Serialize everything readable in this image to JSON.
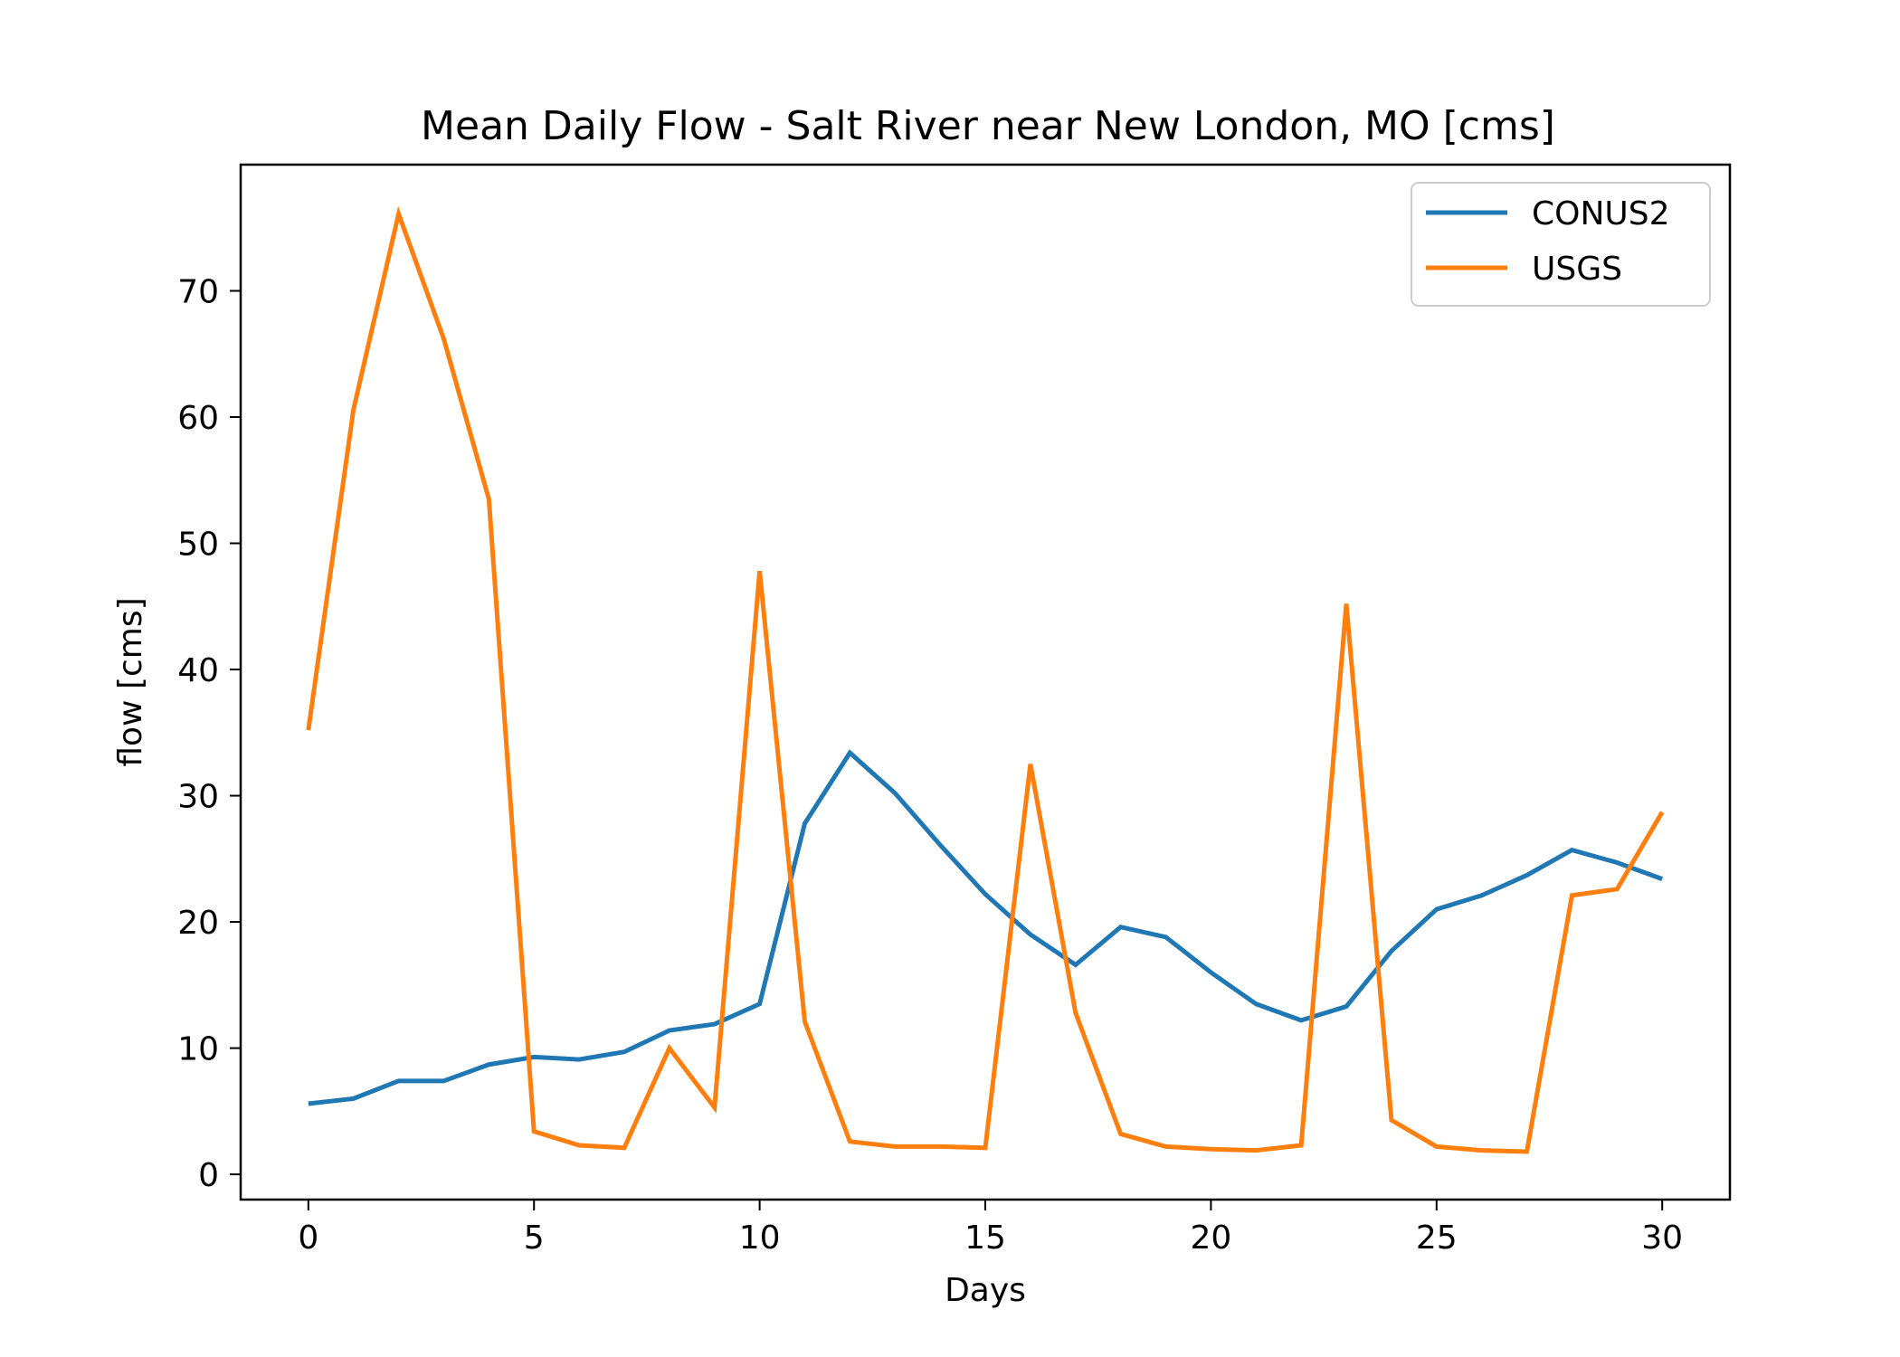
{
  "chart_data": {
    "type": "line",
    "title": "Mean Daily Flow - Salt River near New London, MO [cms]",
    "xlabel": "Days",
    "ylabel": "flow [cms]",
    "xlim": [
      -1.5,
      31.5
    ],
    "ylim": [
      -2,
      80
    ],
    "xticks": [
      0,
      5,
      10,
      15,
      20,
      25,
      30
    ],
    "xtick_labels": [
      "0",
      "5",
      "10",
      "15",
      "20",
      "25",
      "30"
    ],
    "yticks": [
      0,
      10,
      20,
      30,
      40,
      50,
      60,
      70
    ],
    "ytick_labels": [
      "0",
      "10",
      "20",
      "30",
      "40",
      "50",
      "60",
      "70"
    ],
    "grid": false,
    "legend_position": "top-right",
    "x": [
      0,
      1,
      2,
      3,
      4,
      5,
      6,
      7,
      8,
      9,
      10,
      11,
      12,
      13,
      14,
      15,
      16,
      17,
      18,
      19,
      20,
      21,
      22,
      23,
      24,
      25,
      26,
      27,
      28,
      29,
      30
    ],
    "series": [
      {
        "name": "CONUS2",
        "color": "#1f77b4",
        "values": [
          5.6,
          6.0,
          7.4,
          7.4,
          8.7,
          9.3,
          9.1,
          9.7,
          11.4,
          11.9,
          13.5,
          27.8,
          33.4,
          30.2,
          26.1,
          22.2,
          19.0,
          16.6,
          19.6,
          18.8,
          16.0,
          13.5,
          12.2,
          13.3,
          17.7,
          21.0,
          22.1,
          23.7,
          25.7,
          24.7,
          23.4
        ]
      },
      {
        "name": "USGS",
        "color": "#ff7f0e",
        "values": [
          35.2,
          60.6,
          76.1,
          66.2,
          53.5,
          3.4,
          2.3,
          2.1,
          10.0,
          5.3,
          47.8,
          12.1,
          2.6,
          2.2,
          2.2,
          2.1,
          32.5,
          12.8,
          3.2,
          2.2,
          2.0,
          1.9,
          2.3,
          45.2,
          4.3,
          2.2,
          1.9,
          1.8,
          22.1,
          22.6,
          28.7
        ]
      }
    ]
  }
}
